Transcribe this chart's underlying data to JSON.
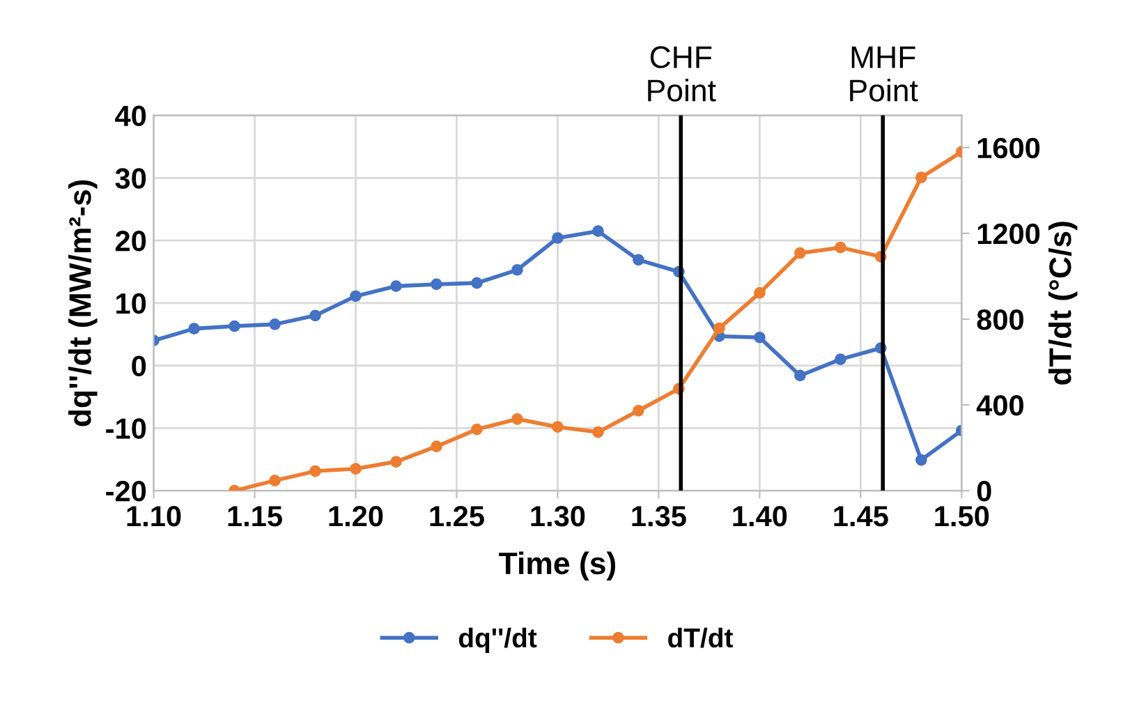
{
  "chart_data": {
    "type": "line",
    "xlabel": "Time (s)",
    "ylabel": "dq''/dt (MW/m²-s)",
    "y2label": "dT/dt (°C/s)",
    "x": [
      1.1,
      1.12,
      1.14,
      1.16,
      1.18,
      1.2,
      1.22,
      1.24,
      1.26,
      1.28,
      1.3,
      1.32,
      1.34,
      1.36,
      1.38,
      1.4,
      1.42,
      1.44,
      1.46,
      1.48,
      1.5
    ],
    "series": [
      {
        "name": "dq''/dt",
        "color": "#4472c4",
        "values": [
          4.0,
          5.9,
          6.3,
          6.6,
          8.0,
          11.1,
          12.7,
          13.0,
          13.2,
          15.3,
          20.4,
          21.5,
          16.9,
          15.0,
          4.7,
          4.5,
          -1.6,
          1.0,
          2.8,
          -15.1,
          -10.4
        ]
      },
      {
        "name": "dT/dt",
        "color": "#ed7d31",
        "axis": "y2",
        "values": [
          null,
          null,
          0,
          47,
          91,
          102,
          135,
          206,
          286,
          334,
          297,
          273,
          373,
          475,
          757,
          922,
          1108,
          1134,
          1091,
          1461,
          1580
        ]
      }
    ],
    "xlim": [
      1.1,
      1.5
    ],
    "xticks": [
      {
        "value": 1.1,
        "label": "1.10"
      },
      {
        "value": 1.15,
        "label": "1.15"
      },
      {
        "value": 1.2,
        "label": "1.20"
      },
      {
        "value": 1.25,
        "label": "1.25"
      },
      {
        "value": 1.3,
        "label": "1.30"
      },
      {
        "value": 1.35,
        "label": "1.35"
      },
      {
        "value": 1.4,
        "label": "1.40"
      },
      {
        "value": 1.45,
        "label": "1.45"
      },
      {
        "value": 1.5,
        "label": "1.50"
      }
    ],
    "ylim": [
      -20,
      40
    ],
    "yticks": [
      -20,
      -10,
      0,
      10,
      20,
      30,
      40
    ],
    "y2lim": [
      0,
      1750
    ],
    "y2ticks": [
      0,
      400,
      800,
      1200,
      1600
    ],
    "ref_lines": [
      {
        "axis": "x",
        "value": 1.361,
        "label": "CHF\nPoint",
        "color": "#000000"
      },
      {
        "axis": "x",
        "value": 1.461,
        "label": "MHF\nPoint",
        "color": "#000000"
      }
    ],
    "grid": true,
    "legend": "bottom",
    "marker": "circle",
    "line_style": "solid"
  }
}
